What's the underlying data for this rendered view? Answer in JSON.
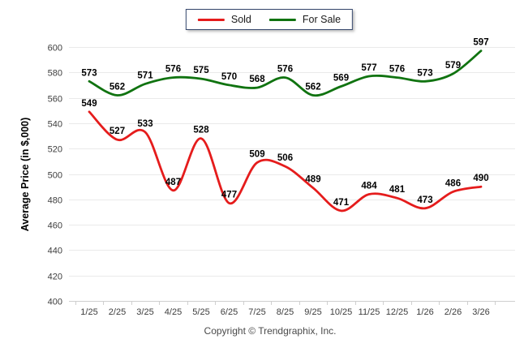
{
  "legend": {
    "items": [
      {
        "label": "Sold"
      },
      {
        "label": "For Sale"
      }
    ]
  },
  "chart_data": {
    "type": "line",
    "title": "",
    "xlabel": "",
    "ylabel": "Average Price (in $,000)",
    "ylim": [
      400,
      600
    ],
    "ytick_step": 20,
    "grid": true,
    "legend_position": "top-center",
    "line_style": "smooth",
    "categories": [
      "1/25",
      "2/25",
      "3/25",
      "4/25",
      "5/25",
      "6/25",
      "7/25",
      "8/25",
      "9/25",
      "10/25",
      "11/25",
      "12/25",
      "1/26",
      "2/26",
      "3/26"
    ],
    "series": [
      {
        "name": "Sold",
        "color": "#e51c1c",
        "values": [
          549,
          527,
          533,
          487,
          528,
          477,
          509,
          506,
          489,
          471,
          484,
          481,
          473,
          486,
          490
        ]
      },
      {
        "name": "For Sale",
        "color": "#107310",
        "values": [
          573,
          562,
          571,
          576,
          575,
          570,
          568,
          576,
          562,
          569,
          577,
          576,
          573,
          579,
          597
        ]
      }
    ]
  },
  "footer": {
    "copyright": "Copyright © Trendgraphix, Inc."
  },
  "colors": {
    "sold_line": "#e51c1c",
    "for_sale_line": "#107310",
    "grid": "#eaeaea",
    "axis": "#cfcfcf",
    "tick_label": "#3d3d3d",
    "point_label": "#000000",
    "legend_border": "#34466b"
  }
}
